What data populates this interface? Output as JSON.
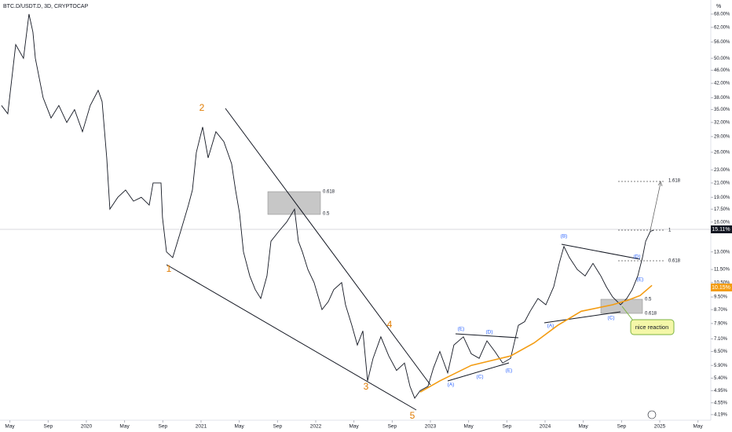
{
  "header": {
    "title": "BTC.D/USDT.D, 3D, CRYPTOCAP",
    "unit": "%"
  },
  "chart_data": {
    "type": "line",
    "log_scale": true,
    "grid": false,
    "xlim": [
      2019.247,
      2025.445
    ],
    "ylim": [
      4.03,
      75
    ],
    "xticks": [
      {
        "value": 2019.333,
        "label": "May"
      },
      {
        "value": 2019.667,
        "label": "Sep"
      },
      {
        "value": 2020,
        "label": "2020"
      },
      {
        "value": 2020.333,
        "label": "May"
      },
      {
        "value": 2020.667,
        "label": "Sep"
      },
      {
        "value": 2021,
        "label": "2021"
      },
      {
        "value": 2021.333,
        "label": "May"
      },
      {
        "value": 2021.667,
        "label": "Sep"
      },
      {
        "value": 2022,
        "label": "2022"
      },
      {
        "value": 2022.333,
        "label": "May"
      },
      {
        "value": 2022.667,
        "label": "Sep"
      },
      {
        "value": 2023,
        "label": "2023"
      },
      {
        "value": 2023.333,
        "label": "May"
      },
      {
        "value": 2023.667,
        "label": "Sep"
      },
      {
        "value": 2024,
        "label": "2024"
      },
      {
        "value": 2024.333,
        "label": "May"
      },
      {
        "value": 2024.667,
        "label": "Sep"
      },
      {
        "value": 2025,
        "label": "2025"
      },
      {
        "value": 2025.333,
        "label": "May"
      }
    ],
    "yticks": [
      {
        "value": 68,
        "label": "68.00%"
      },
      {
        "value": 62,
        "label": "62.00%"
      },
      {
        "value": 56,
        "label": "56.00%"
      },
      {
        "value": 50,
        "label": "50.00%"
      },
      {
        "value": 46,
        "label": "46.00%"
      },
      {
        "value": 42,
        "label": "42.00%"
      },
      {
        "value": 38,
        "label": "38.00%"
      },
      {
        "value": 35,
        "label": "35.00%"
      },
      {
        "value": 32,
        "label": "32.00%"
      },
      {
        "value": 29,
        "label": "29.00%"
      },
      {
        "value": 26,
        "label": "26.00%"
      },
      {
        "value": 23,
        "label": "23.00%"
      },
      {
        "value": 21,
        "label": "21.00%"
      },
      {
        "value": 19,
        "label": "19.00%"
      },
      {
        "value": 17.5,
        "label": "17.50%"
      },
      {
        "value": 16,
        "label": "16.00%"
      },
      {
        "value": 13,
        "label": "13.00%"
      },
      {
        "value": 11.5,
        "label": "11.50%"
      },
      {
        "value": 10.5,
        "label": "10.50%"
      },
      {
        "value": 9.5,
        "label": "9.50%"
      },
      {
        "value": 8.7,
        "label": "8.70%"
      },
      {
        "value": 7.9,
        "label": "7.90%"
      },
      {
        "value": 7.1,
        "label": "7.10%"
      },
      {
        "value": 6.5,
        "label": "6.50%"
      },
      {
        "value": 5.9,
        "label": "5.90%"
      },
      {
        "value": 5.4,
        "label": "5.40%"
      },
      {
        "value": 4.95,
        "label": "4.95%"
      },
      {
        "value": 4.55,
        "label": "4.55%"
      },
      {
        "value": 4.19,
        "label": "4.19%"
      }
    ],
    "series": [
      {
        "color": "#131722",
        "x": [
          2019.26,
          2019.315,
          2019.384,
          2019.452,
          2019.5,
          2019.534,
          2019.555,
          2019.623,
          2019.692,
          2019.76,
          2019.829,
          2019.897,
          2019.966,
          2020.034,
          2020.103,
          2020.137,
          2020.178,
          2020.205,
          2020.274,
          2020.342,
          2020.411,
          2020.479,
          2020.548,
          2020.582,
          2020.651,
          2020.664,
          2020.699,
          2020.753,
          2020.822,
          2020.89,
          2020.925,
          2020.959,
          2021.014,
          2021.062,
          2021.13,
          2021.199,
          2021.267,
          2021.301,
          2021.336,
          2021.37,
          2021.425,
          2021.473,
          2021.521,
          2021.575,
          2021.61,
          2021.678,
          2021.747,
          2021.815,
          2021.849,
          2021.884,
          2021.932,
          2021.986,
          2022.055,
          2022.11,
          2022.158,
          2022.226,
          2022.26,
          2022.315,
          2022.363,
          2022.411,
          2022.452,
          2022.5,
          2022.568,
          2022.637,
          2022.705,
          2022.774,
          2022.822,
          2022.863,
          2022.911,
          2022.979,
          2023.027,
          2023.082,
          2023.151,
          2023.205,
          2023.288,
          2023.356,
          2023.425,
          2023.493,
          2023.562,
          2023.63,
          2023.699,
          2023.767,
          2023.822,
          2023.87,
          2023.938,
          2024.007,
          2024.075,
          2024.123,
          2024.164,
          2024.212,
          2024.281,
          2024.349,
          2024.418,
          2024.486,
          2024.534,
          2024.589,
          2024.658,
          2024.712,
          2024.76,
          2024.808,
          2024.849,
          2024.877,
          2024.918,
          2024.945
        ],
        "values": [
          36,
          34,
          55,
          50,
          68,
          60,
          50,
          38,
          33,
          36,
          32,
          35,
          30,
          36,
          40,
          37,
          25,
          17.5,
          19,
          20,
          18.5,
          19,
          18,
          21,
          21,
          16.5,
          13,
          12.5,
          15,
          18,
          20,
          26,
          31,
          25,
          30,
          28,
          24,
          20,
          17,
          13,
          11,
          10,
          9.4,
          11,
          14,
          15,
          16,
          17.5,
          14,
          13,
          11.5,
          10.5,
          8.7,
          9.2,
          10,
          10.5,
          9,
          7.8,
          6.8,
          7.5,
          5.3,
          6.2,
          7.2,
          6.3,
          5.7,
          6,
          5.1,
          4.7,
          4.95,
          5.1,
          5.8,
          6.5,
          5.6,
          6.8,
          7.2,
          6.4,
          6.2,
          7,
          6.5,
          6,
          6.2,
          7.8,
          8,
          8.6,
          9.4,
          9,
          10.2,
          12,
          13.5,
          12.5,
          11.5,
          11,
          12,
          11,
          10.2,
          9.5,
          9,
          9.4,
          10,
          11,
          12.5,
          14,
          15,
          15.11
        ]
      },
      {
        "color": "#f39c12",
        "x": [
          2022.911,
          2023.082,
          2023.356,
          2023.699,
          2023.904,
          2024.11,
          2024.315,
          2024.589,
          2024.726,
          2024.829,
          2024.932
        ],
        "values": [
          4.9,
          5.3,
          5.9,
          6.3,
          6.9,
          7.8,
          8.6,
          9,
          9.3,
          9.6,
          10.3
        ]
      }
    ],
    "last_price_label": "15.11%",
    "ma_label": "10.15%",
    "annotations": [
      "1",
      "2",
      "3",
      "4",
      "5",
      "(E)",
      "(D)",
      "(A)",
      "(C)",
      "(E)",
      "(B)",
      "(D)",
      "(E)",
      "(A)",
      "(C)",
      "0.618",
      "0.5",
      "0.5",
      "0.618",
      "1.618",
      "1",
      "0.618",
      "nice reaction"
    ]
  }
}
